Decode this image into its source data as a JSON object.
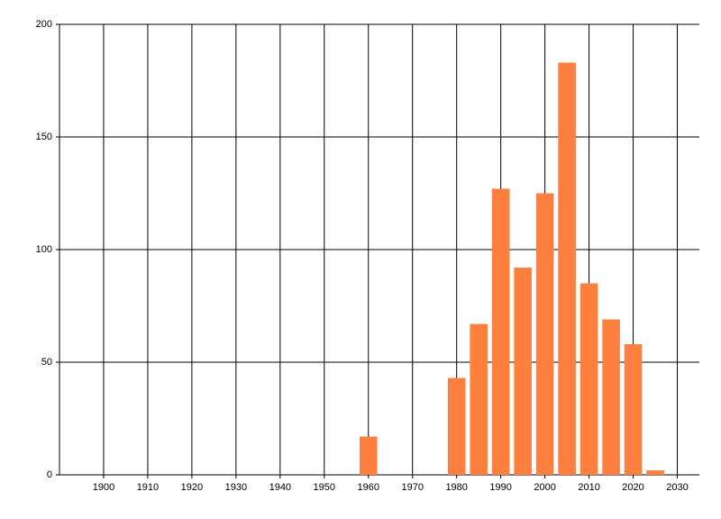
{
  "chart_data": {
    "type": "bar",
    "x": [
      1960,
      1980,
      1985,
      1990,
      1995,
      2000,
      2005,
      2010,
      2015,
      2020,
      2025
    ],
    "values": [
      17,
      43,
      67,
      127,
      92,
      125,
      183,
      85,
      69,
      58,
      2
    ],
    "bar_width": 4,
    "color": "#ff7f3f",
    "xlim": [
      1890,
      2035
    ],
    "xticks": [
      1900,
      1910,
      1920,
      1930,
      1940,
      1950,
      1960,
      1970,
      1980,
      1990,
      2000,
      2010,
      2020,
      2030
    ],
    "ylim": [
      0,
      200
    ],
    "yticks": [
      0,
      50,
      100,
      150,
      200
    ],
    "grid": true
  }
}
